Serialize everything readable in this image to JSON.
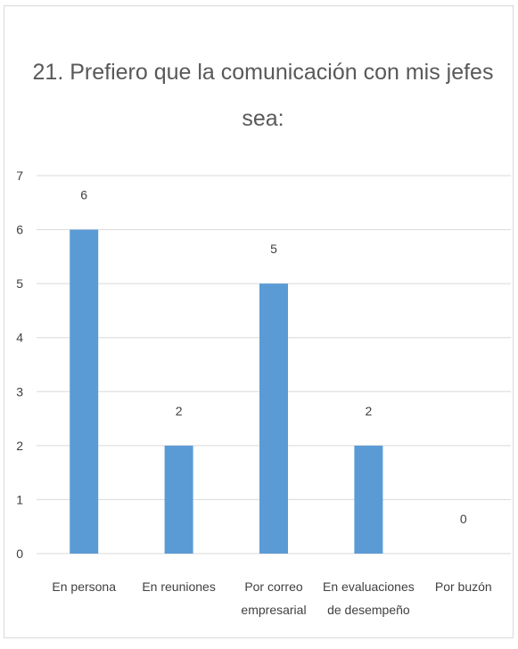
{
  "chart_data": {
    "type": "bar",
    "title_lines": [
      "21. Prefiero que la comunicación con mis jefes",
      "sea:"
    ],
    "categories": [
      [
        "En persona"
      ],
      [
        "En reuniones"
      ],
      [
        "Por correo",
        "empresarial"
      ],
      [
        "En evaluaciones",
        "de desempeño"
      ],
      [
        "Por buzón"
      ]
    ],
    "values": [
      6,
      2,
      5,
      2,
      0
    ],
    "data_labels": [
      "6",
      "2",
      "5",
      "2",
      "0"
    ],
    "ylim": [
      0,
      7
    ],
    "yticks": [
      "0",
      "1",
      "2",
      "3",
      "4",
      "5",
      "6",
      "7"
    ],
    "grid": true,
    "legend": "none",
    "colors": {
      "bar": "#5b9bd5",
      "grid": "#d9d9d9",
      "text": "#404040",
      "title": "#595959"
    }
  }
}
